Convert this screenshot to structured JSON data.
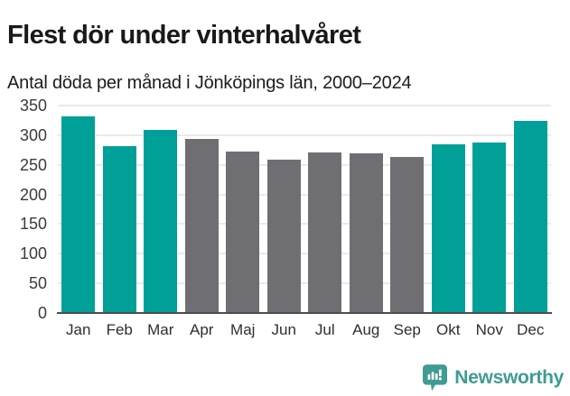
{
  "header": {
    "title": "Flest dör under vinterhalvåret",
    "subtitle": "Antal döda per månad i Jönköpings län, 2000–2024"
  },
  "chart_data": {
    "type": "bar",
    "title": "Flest dör under vinterhalvåret",
    "subtitle": "Antal döda per månad i Jönköpings län, 2000–2024",
    "categories": [
      "Jan",
      "Feb",
      "Mar",
      "Apr",
      "Maj",
      "Jun",
      "Jul",
      "Aug",
      "Sep",
      "Okt",
      "Nov",
      "Dec"
    ],
    "values": [
      332,
      282,
      309,
      294,
      273,
      258,
      271,
      269,
      264,
      284,
      287,
      324
    ],
    "highlighted": [
      true,
      true,
      true,
      false,
      false,
      false,
      false,
      false,
      false,
      true,
      true,
      true
    ],
    "highlight_color": "#00a099",
    "base_color": "#6f6e73",
    "xlabel": "",
    "ylabel": "",
    "ylim": [
      0,
      350
    ],
    "yticks": [
      0,
      50,
      100,
      150,
      200,
      250,
      300,
      350
    ],
    "grid": true,
    "legend": "none"
  },
  "footer": {
    "brand": "Newsworthy",
    "logo_icon": "bar-chart-speech-bubble-icon",
    "logo_color": "#3f9c94"
  }
}
